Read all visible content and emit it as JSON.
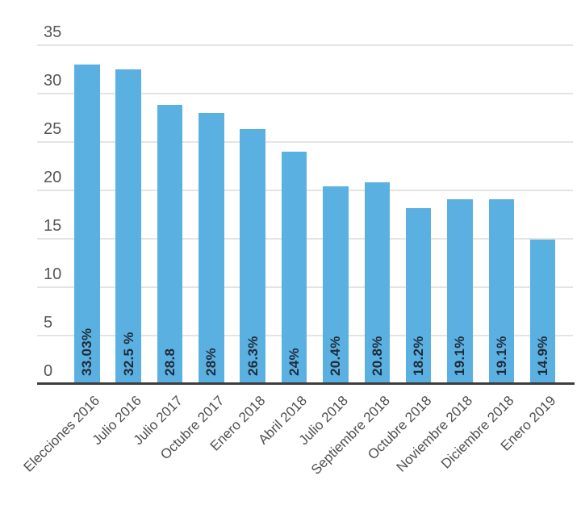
{
  "chart_data": {
    "type": "bar",
    "title": "",
    "xlabel": "",
    "ylabel": "",
    "categories": [
      "Elecciones 2016",
      "Julio 2016",
      "Julio 2017",
      "Octubre 2017",
      "Enero 2018",
      "Abril 2018",
      "Julio 2018",
      "Septiembre 2018",
      "Octubre 2018",
      "Noviembre 2018",
      "Diciembre 2018",
      "Enero 2019"
    ],
    "values": [
      33.03,
      32.5,
      28.8,
      28,
      26.3,
      24,
      20.4,
      20.8,
      18.2,
      19.1,
      19.1,
      14.9
    ],
    "bar_labels": [
      "33.03%",
      "32.5 %",
      "28.8",
      "28%",
      "26.3%",
      "24%",
      "20.4%",
      "20.8%",
      "18.2%",
      "19.1%",
      "19.1%",
      "14.9%"
    ],
    "ylim": [
      0,
      35
    ],
    "yticks": [
      0,
      5,
      10,
      15,
      20,
      25,
      30,
      35
    ],
    "grid": true,
    "legend_position": "none",
    "colors": {
      "bar": "#5bb0e2",
      "axis_line": "#3d3d3d",
      "gridline": "#e4e4e4",
      "y_tick_text": "#56565a",
      "category_text": "#4f4f51",
      "value_text": "#202b37",
      "background": "#ffffff"
    }
  }
}
